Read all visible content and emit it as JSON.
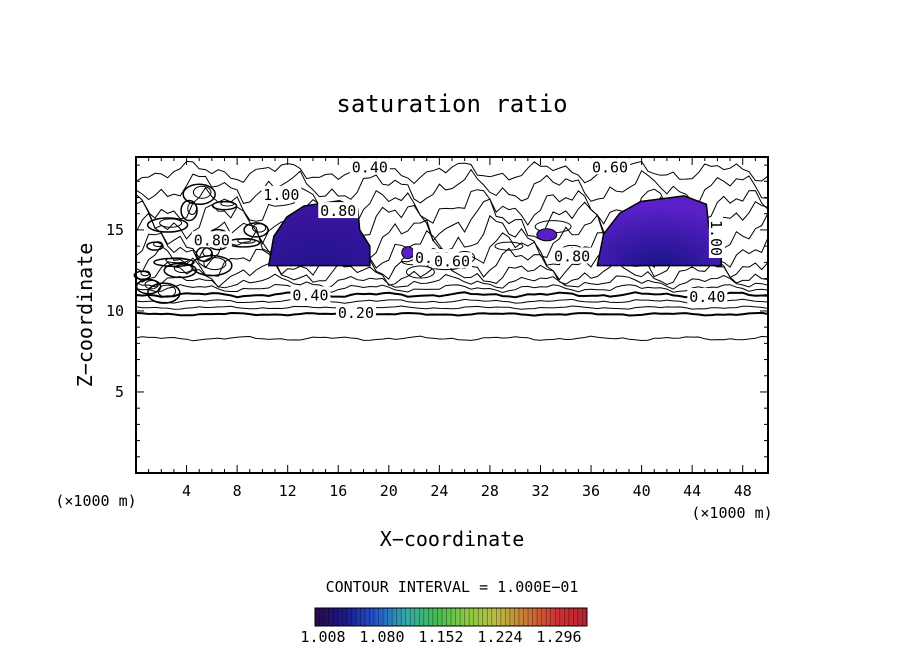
{
  "chart_data": {
    "type": "contour",
    "title": "saturation ratio",
    "xlabel": "X−coordinate",
    "ylabel": "Z−coordinate",
    "x_unit": "(×1000 m)",
    "y_unit": "(×1000 m)",
    "xlim": [
      0,
      50
    ],
    "ylim": [
      0,
      19.5
    ],
    "x_ticks": [
      4,
      8,
      12,
      16,
      20,
      24,
      28,
      32,
      36,
      40,
      44,
      48
    ],
    "y_ticks": [
      5,
      10,
      15
    ],
    "contour_interval_text": "CONTOUR INTERVAL = 1.000E−01",
    "contour_labels": [
      "0.40",
      "0.60",
      "1.00",
      "0.80",
      "0.80",
      "0.80",
      "0.60",
      "0.80",
      "1.00",
      "0.40",
      "0.40",
      "0.20"
    ],
    "colorbar": {
      "tick_labels": [
        "1.008",
        "1.080",
        "1.152",
        "1.224",
        "1.296"
      ],
      "colors": [
        "#2a0a4a",
        "#1a1a8a",
        "#2255cc",
        "#33aaaa",
        "#44bb55",
        "#88cc44",
        "#bbbb44",
        "#cc7733",
        "#cc3333",
        "#bb1f2f"
      ]
    },
    "supersaturated_regions": [
      {
        "x_range": [
          10.5,
          18.5
        ],
        "z_range": [
          12.8,
          16.8
        ],
        "max_color": "#3a14a0",
        "core_color": "#22148c"
      },
      {
        "x_range": [
          36.5,
          46.3
        ],
        "z_range": [
          12.8,
          17.1
        ],
        "max_color": "#5a20c8",
        "core_color": "#1a1488"
      }
    ]
  }
}
